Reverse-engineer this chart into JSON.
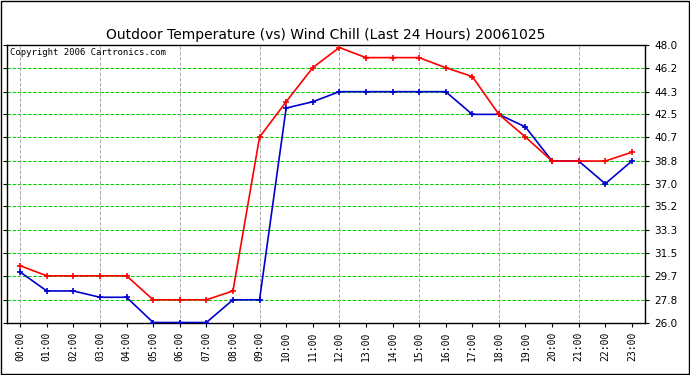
{
  "title": "Outdoor Temperature (vs) Wind Chill (Last 24 Hours) 20061025",
  "copyright": "Copyright 2006 Cartronics.com",
  "x_labels": [
    "00:00",
    "01:00",
    "02:00",
    "03:00",
    "04:00",
    "05:00",
    "06:00",
    "07:00",
    "08:00",
    "09:00",
    "10:00",
    "11:00",
    "12:00",
    "13:00",
    "14:00",
    "15:00",
    "16:00",
    "17:00",
    "18:00",
    "19:00",
    "20:00",
    "21:00",
    "22:00",
    "23:00"
  ],
  "y_ticks": [
    26.0,
    27.8,
    29.7,
    31.5,
    33.3,
    35.2,
    37.0,
    38.8,
    40.7,
    42.5,
    44.3,
    46.2,
    48.0
  ],
  "y_min": 26.0,
  "y_max": 48.0,
  "temp_data": [
    30.5,
    29.7,
    29.7,
    29.7,
    29.7,
    27.8,
    27.8,
    27.8,
    28.5,
    40.7,
    43.5,
    46.2,
    47.8,
    47.0,
    47.0,
    47.0,
    46.2,
    45.5,
    42.5,
    40.7,
    38.8,
    38.8,
    38.8,
    39.5
  ],
  "wind_chill_data": [
    30.0,
    28.5,
    28.5,
    28.0,
    28.0,
    26.0,
    26.0,
    26.0,
    27.8,
    27.8,
    43.0,
    43.5,
    44.3,
    44.3,
    44.3,
    44.3,
    44.3,
    42.5,
    42.5,
    41.5,
    38.8,
    38.8,
    37.0,
    38.8
  ],
  "temp_color": "#ff0000",
  "wind_chill_color": "#0000cc",
  "bg_color": "#ffffff",
  "plot_bg_color": "#ffffff",
  "grid_h_color": "#00cc00",
  "grid_v_color": "#aaaaaa",
  "border_color": "#000000",
  "title_color": "#000000",
  "marker": "+",
  "linewidth": 1.2,
  "markersize": 5,
  "markeredgewidth": 1.2
}
